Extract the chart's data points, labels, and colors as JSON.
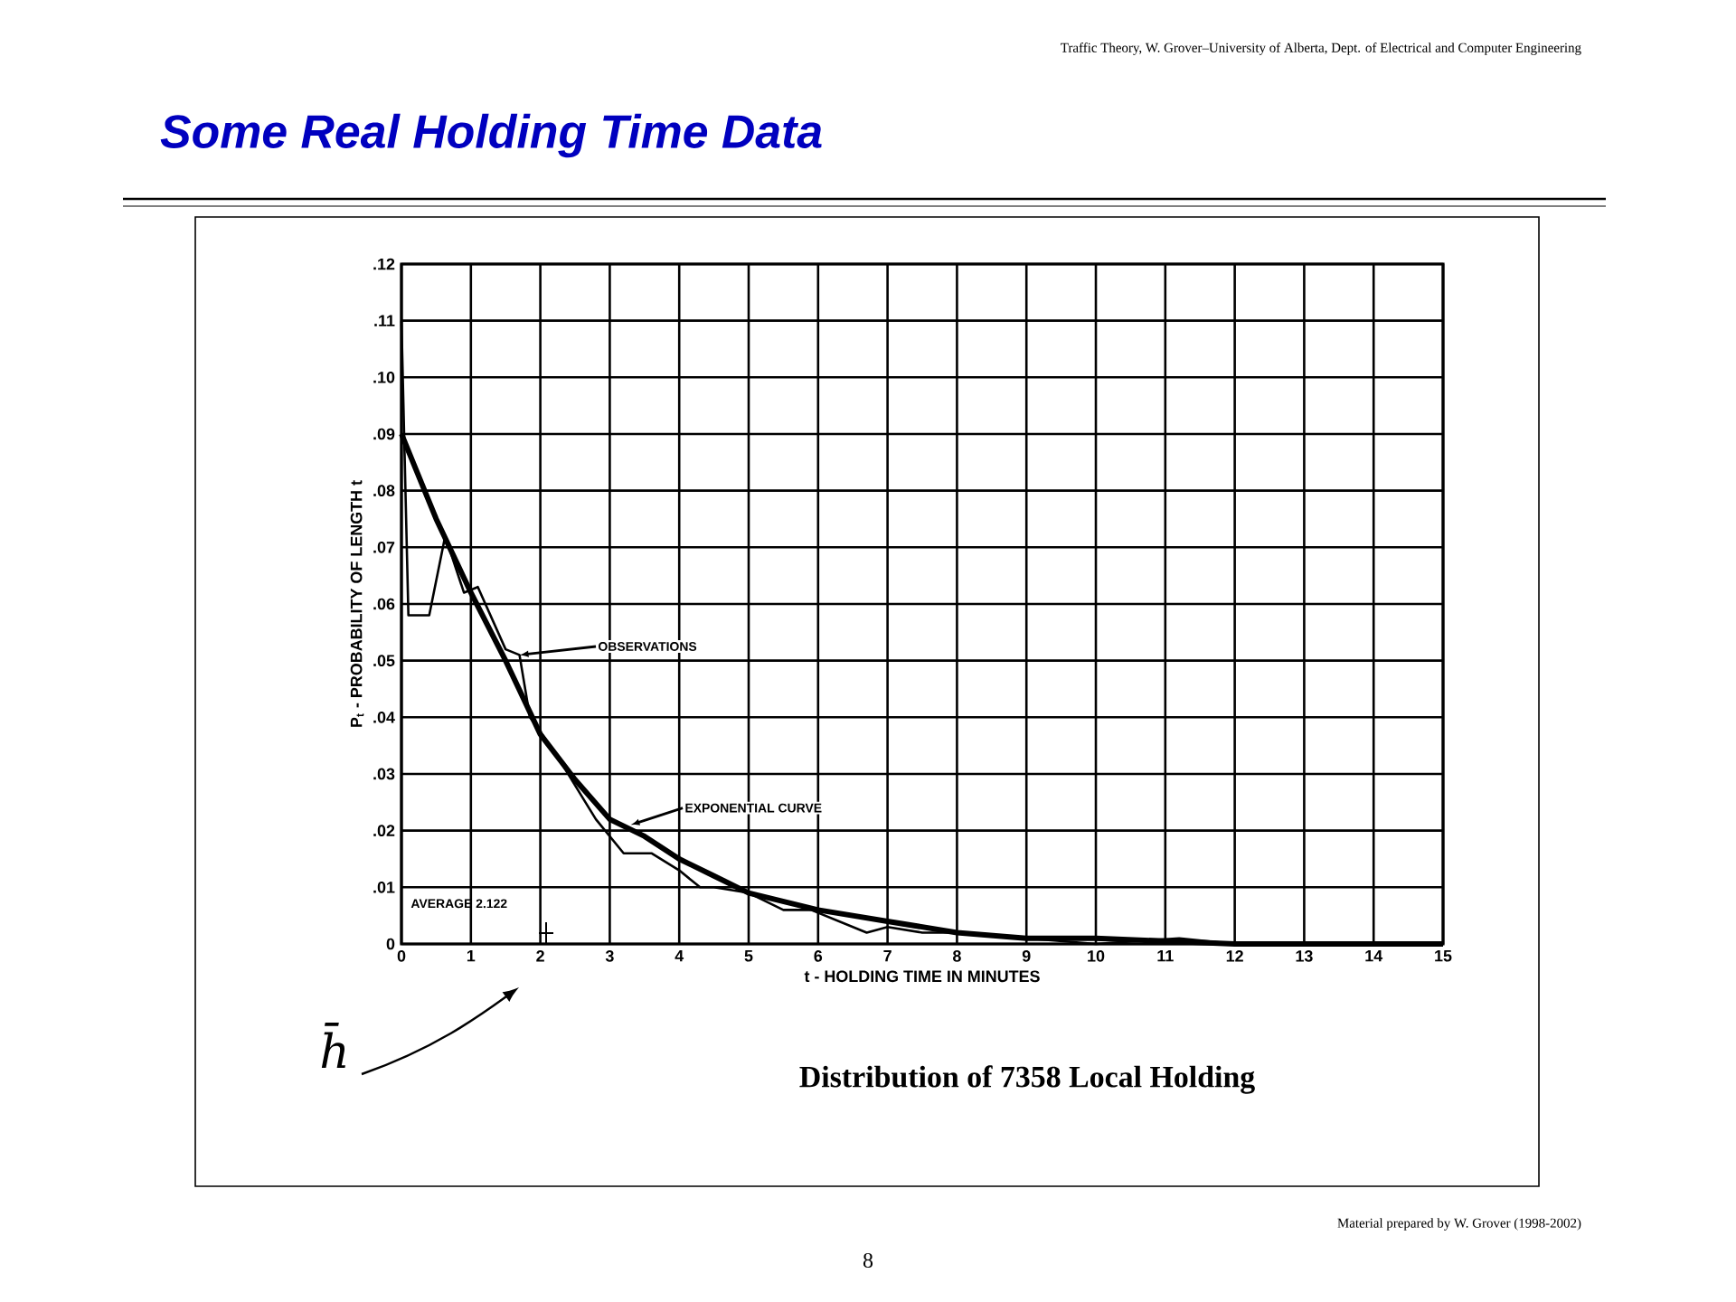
{
  "chart_data": {
    "type": "line",
    "title": "Some Real Holding Time Data",
    "xlabel": "t - HOLDING TIME IN MINUTES",
    "ylabel": "P$_{t}$ - PROBABILITY OF LENGTH t",
    "series": [
      {
        "color": "#000000",
        "x": [
          0,
          0.1,
          0.4,
          0.63,
          0.9,
          1.1,
          1.5,
          1.7,
          1.85,
          2.2,
          2.6,
          2.8,
          3.2,
          3.6,
          4.0,
          4.3,
          4.5,
          5.0,
          5.5,
          5.9,
          6.3,
          6.7,
          7.0,
          7.5,
          8.0,
          9.0,
          10.0,
          11.2,
          12.0,
          15.0
        ],
        "values": [
          0.11,
          0.058,
          0.058,
          0.072,
          0.062,
          0.063,
          0.052,
          0.051,
          0.04,
          0.034,
          0.026,
          0.022,
          0.016,
          0.016,
          0.013,
          0.01,
          0.01,
          0.009,
          0.006,
          0.006,
          0.004,
          0.002,
          0.003,
          0.002,
          0.002,
          0.001,
          0,
          0.001,
          0,
          0
        ]
      },
      {
        "color": "#000000",
        "x": [
          0,
          0.5,
          1,
          1.5,
          2,
          2.5,
          3,
          3.5,
          4,
          4.5,
          5,
          6,
          7,
          8,
          9,
          10,
          12,
          15
        ],
        "values": [
          0.09,
          0.075,
          0.062,
          0.05,
          0.037,
          0.029,
          0.022,
          0.019,
          0.015,
          0.012,
          0.009,
          0.006,
          0.004,
          0.002,
          0.001,
          0.001,
          0,
          0
        ]
      }
    ],
    "xlim": [
      0,
      15
    ],
    "xticks": [
      0,
      1,
      2,
      3,
      4,
      5,
      6,
      7,
      8,
      9,
      10,
      11,
      12,
      13,
      14,
      15
    ],
    "ylim": [
      0,
      0.12
    ],
    "yticks": [
      {
        "value": 0,
        "label": "0"
      },
      {
        "value": 0.01,
        "label": ".01"
      },
      {
        "value": 0.02,
        "label": ".02"
      },
      {
        "value": 0.03,
        "label": ".03"
      },
      {
        "value": 0.04,
        "label": ".04"
      },
      {
        "value": 0.05,
        "label": ".05"
      },
      {
        "value": 0.06,
        "label": ".06"
      },
      {
        "value": 0.07,
        "label": ".07"
      },
      {
        "value": 0.08,
        "label": ".08"
      },
      {
        "value": 0.09,
        "label": ".09"
      },
      {
        "value": 0.1,
        "label": ".10"
      },
      {
        "value": 0.11,
        "label": ".11"
      },
      {
        "value": 0.12,
        "label": ".12"
      }
    ],
    "grid": true,
    "line_style": "solid",
    "annotations": [
      {
        "text": "OBSERVATIONS",
        "x": 1.7,
        "y": 0.051
      },
      {
        "text": "EXPONENTIAL CURVE",
        "x": 3.3,
        "y": 0.021
      },
      "AVERAGE 2.122",
      "h̄",
      "Traffic Theory, W. Grover–University of Alberta, Dept. of Electrical and Computer Engineering",
      "Distribution of 7358 Local Holding",
      "Material prepared by W. Grover (1998-2002)",
      "8"
    ]
  }
}
